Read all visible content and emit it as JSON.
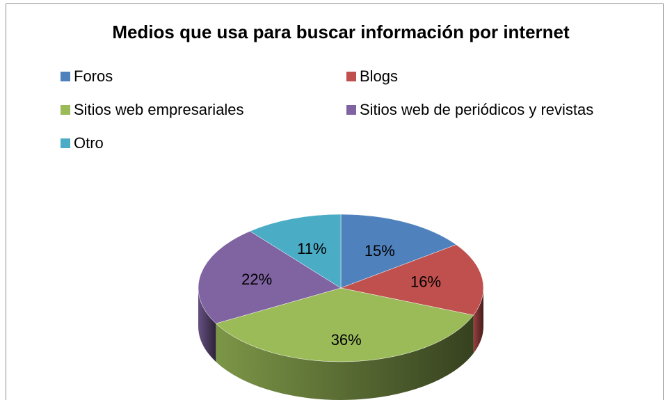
{
  "chart_data": {
    "type": "pie",
    "title": "Medios que usa para buscar información por internet",
    "categories": [
      "Foros",
      "Blogs",
      "Sitios web empresariales",
      "Sitios web de periódicos  y revistas",
      "Otro"
    ],
    "values": [
      15,
      16,
      36,
      22,
      11
    ],
    "value_labels": [
      "15%",
      "16%",
      "36%",
      "22%",
      "11%"
    ],
    "colors": [
      "#4f81bd",
      "#c0504d",
      "#9bbb59",
      "#8064a2",
      "#4bacc6"
    ],
    "legend": "top"
  }
}
